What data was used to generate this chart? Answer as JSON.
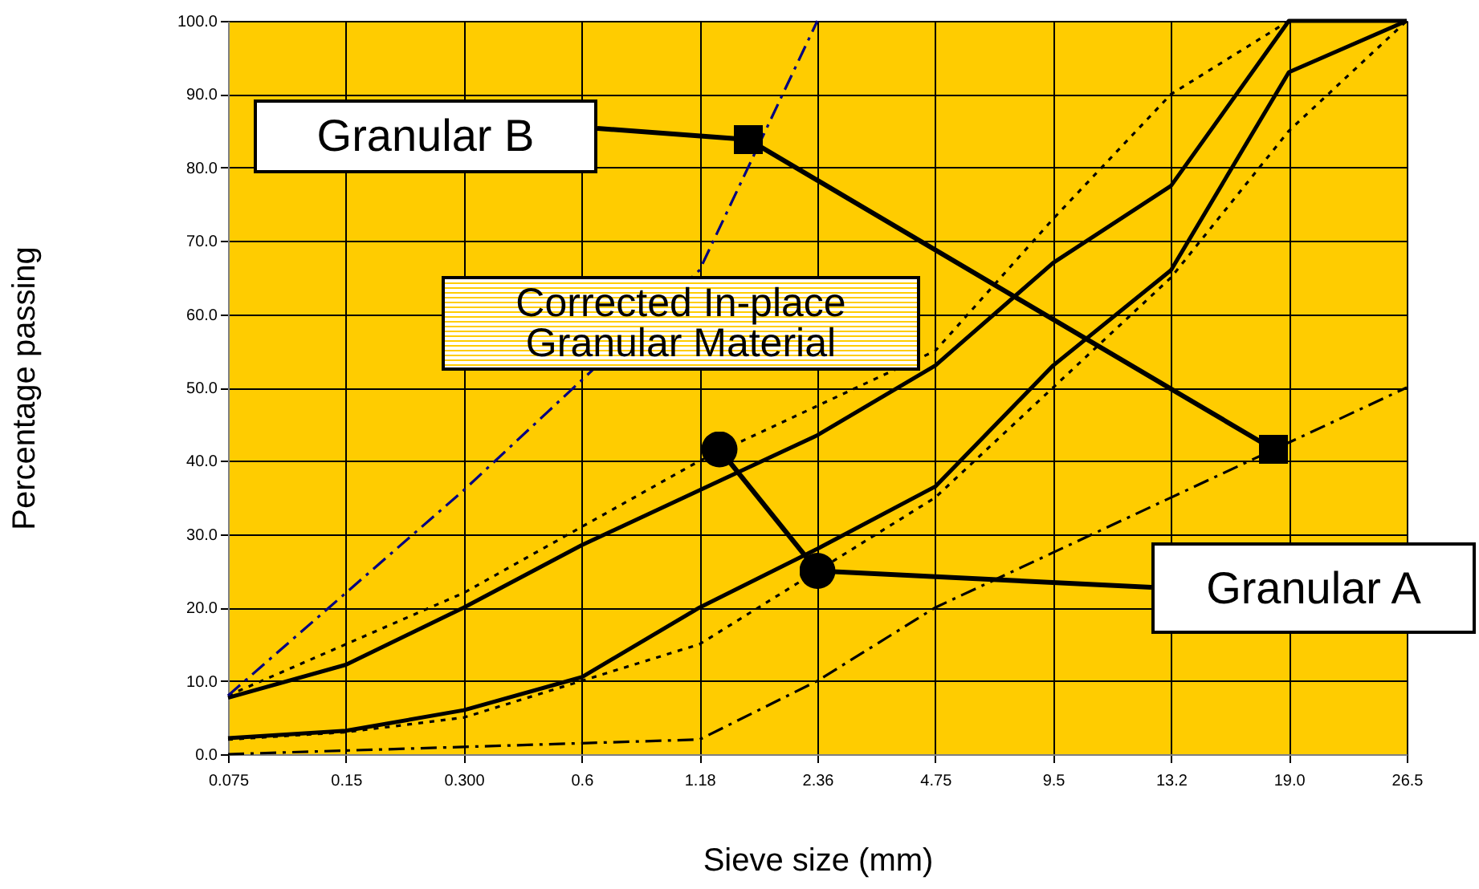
{
  "chart_data": {
    "type": "line",
    "xlabel": "Sieve size (mm)",
    "ylabel": "Percentage passing",
    "categories": [
      "0.075",
      "0.15",
      "0.300",
      "0.6",
      "1.18",
      "2.36",
      "4.75",
      "9.5",
      "13.2",
      "19.0",
      "26.5"
    ],
    "series": [
      {
        "color": "#000000",
        "line_style": "solid",
        "values": [
          7.7,
          12.2,
          20,
          28.5,
          36,
          43.5,
          53,
          67,
          77.5,
          100,
          100
        ]
      },
      {
        "color": "#000000",
        "line_style": "solid",
        "values": [
          2.2,
          3.2,
          6,
          10.5,
          20,
          28,
          36.5,
          53,
          66,
          93,
          100
        ]
      },
      {
        "color": "#000000",
        "line_style": "dotted",
        "values": [
          8,
          15,
          22,
          31,
          40,
          47.5,
          55,
          73,
          90,
          100,
          100
        ]
      },
      {
        "color": "#000000",
        "line_style": "dotted",
        "values": [
          2,
          3,
          5,
          10,
          15,
          25,
          35,
          50,
          65,
          85,
          100
        ]
      },
      {
        "color": "#000000",
        "line_style": "dashed",
        "values": [
          0,
          0.5,
          1,
          1.5,
          2,
          10,
          20,
          27.5,
          35,
          42.5,
          50
        ]
      },
      {
        "color": "#000080",
        "line_style": "dashed",
        "values": [
          8,
          22,
          36,
          51,
          66,
          100,
          null,
          null,
          null,
          null,
          null
        ]
      }
    ],
    "ylim": [
      0,
      100
    ],
    "yticks": [
      {
        "value": 0,
        "label": "0.0"
      },
      {
        "value": 10,
        "label": "10.0"
      },
      {
        "value": 20,
        "label": "20.0"
      },
      {
        "value": 30,
        "label": "30.0"
      },
      {
        "value": 40,
        "label": "40.0"
      },
      {
        "value": 50,
        "label": "50.0"
      },
      {
        "value": 60,
        "label": "60.0"
      },
      {
        "value": 70,
        "label": "70.0"
      },
      {
        "value": 80,
        "label": "80.0"
      },
      {
        "value": 90,
        "label": "90.0"
      },
      {
        "value": 100,
        "label": "100.0"
      }
    ],
    "grid": true,
    "marker": "none",
    "annotations": [
      "Granular B",
      "Corrected In-place Granular Material",
      {
        "text": "Granular A",
        "x": "2.36",
        "y": 25
      }
    ]
  }
}
